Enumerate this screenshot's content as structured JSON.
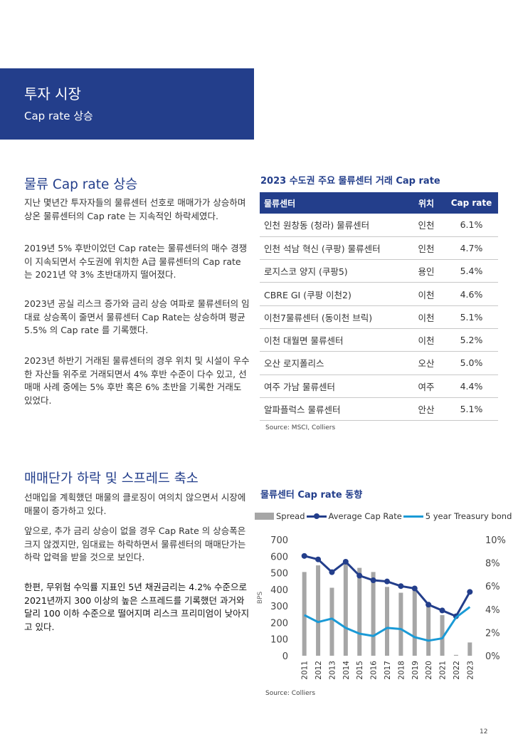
{
  "banner": {
    "title": "투자 시장",
    "subtitle": "Cap rate 상승"
  },
  "section1": {
    "heading": "물류 Cap rate 상승",
    "paragraphs": [
      "지난 몇년간 투자자들의 물류센터 선호로 매매가가 상승하며 상온 물류센터의 Cap rate 는 지속적인 하락세였다.",
      "2019년 5% 후반이었던 Cap rate는 물류센터의 매수 경쟁이 지속되면서 수도권에 위치한 A급 물류센터의 Cap rate 는 2021년 약 3% 초반대까지 떨어졌다.",
      "2023년 공실 리스크 증가와 금리 상승 여파로 물류센터의 임대료 상승폭이 줄면서 물류센터 Cap Rate는 상승하며 평균 5.5% 의 Cap rate 를 기록했다.",
      "2023년 하반기 거래된 물류센터의 경우 위치 및 시설이 우수한 자산들 위주로 거래되면서 4% 후반 수준이 다수 있고, 선매매 사례 중에는 5% 후반 혹은 6% 초반을 기록한 거래도 있었다."
    ]
  },
  "section2": {
    "heading": "매매단가 하락 및 스프레드 축소",
    "paragraphs": [
      "선매입을 계획했던 매물의 클로징이 여의치 않으면서 시장에 매물이 증가하고 있다.",
      "앞으로, 추가 금리 상승이 없을 경우 Cap Rate 의 상승폭은 크지 않겠지만, 임대료는 하락하면서 물류센터의 매매단가는 하락 압력을 받을 것으로 보인다.",
      "한편, 무위험 수익률 지표인 5년 채권금리는 4.2% 수준으로 2021년까지 300 이상의 높은 스프레드를 기록했던 과거와 달리 100 이하 수준으로 떨어지며 리스크 프리미엄이 낮아지고 있다."
    ]
  },
  "table": {
    "title": "2023 수도권 주요 물류센터 거래 Cap rate",
    "headers": [
      "물류센터",
      "위치",
      "Cap rate"
    ],
    "rows": [
      [
        "인천 원창동 (청라) 물류센터",
        "인천",
        "6.1%"
      ],
      [
        "인천 석남 혁신 (쿠팡) 물류센터",
        "인천",
        "4.7%"
      ],
      [
        "로지스코 양지 (쿠팡5)",
        "용인",
        "5.4%"
      ],
      [
        "CBRE GI (쿠팡 이천2)",
        "이천",
        "4.6%"
      ],
      [
        "이천7물류센터 (동이천 브릭)",
        "이천",
        "5.1%"
      ],
      [
        "이천 대월면 물류센터",
        "이천",
        "5.2%"
      ],
      [
        "오산 로지폴리스",
        "오산",
        "5.0%"
      ],
      [
        "여주 가남 물류센터",
        "여주",
        "4.4%"
      ],
      [
        "알파플럭스 물류센터",
        "안산",
        "5.1%"
      ]
    ],
    "source": "Source: MSCI, Colliers"
  },
  "chart_data": {
    "type": "bar",
    "title": "물류센터 Cap rate 동향",
    "categories": [
      "2011",
      "2012",
      "2013",
      "2014",
      "2015",
      "2016",
      "2017",
      "2018",
      "2019",
      "2020",
      "2021",
      "2022",
      "2023"
    ],
    "series": [
      {
        "name": "Spread",
        "kind": "bar",
        "axis": "left",
        "color": "#a6a6a6",
        "values": [
          505,
          545,
          410,
          565,
          530,
          505,
          415,
          380,
          410,
          300,
          245,
          5,
          80
        ]
      },
      {
        "name": "Average Cap Rate",
        "kind": "line",
        "axis": "right",
        "color": "#233e8b",
        "values": [
          8.6,
          8.3,
          7.2,
          8.1,
          6.9,
          6.5,
          6.4,
          6.0,
          5.8,
          4.4,
          3.9,
          3.4,
          5.5
        ]
      },
      {
        "name": "5 year Treasury bond",
        "kind": "line",
        "axis": "right",
        "color": "#1a9ad6",
        "values": [
          3.5,
          2.9,
          3.2,
          2.4,
          1.9,
          1.7,
          2.4,
          2.3,
          1.6,
          1.3,
          1.5,
          3.3,
          4.2
        ]
      }
    ],
    "ylabel": "BPS",
    "ylim": [
      0,
      700
    ],
    "y_ticks": [
      0,
      100,
      200,
      300,
      400,
      500,
      600,
      700
    ],
    "y2lim": [
      0,
      10
    ],
    "y2_ticks": [
      "0%",
      "2%",
      "4%",
      "6%",
      "8%",
      "10%"
    ],
    "y2_values": [
      0,
      2,
      4,
      6,
      8,
      10
    ],
    "legend": "top",
    "grid": false,
    "source": "Source: Colliers"
  },
  "page_number": "12"
}
